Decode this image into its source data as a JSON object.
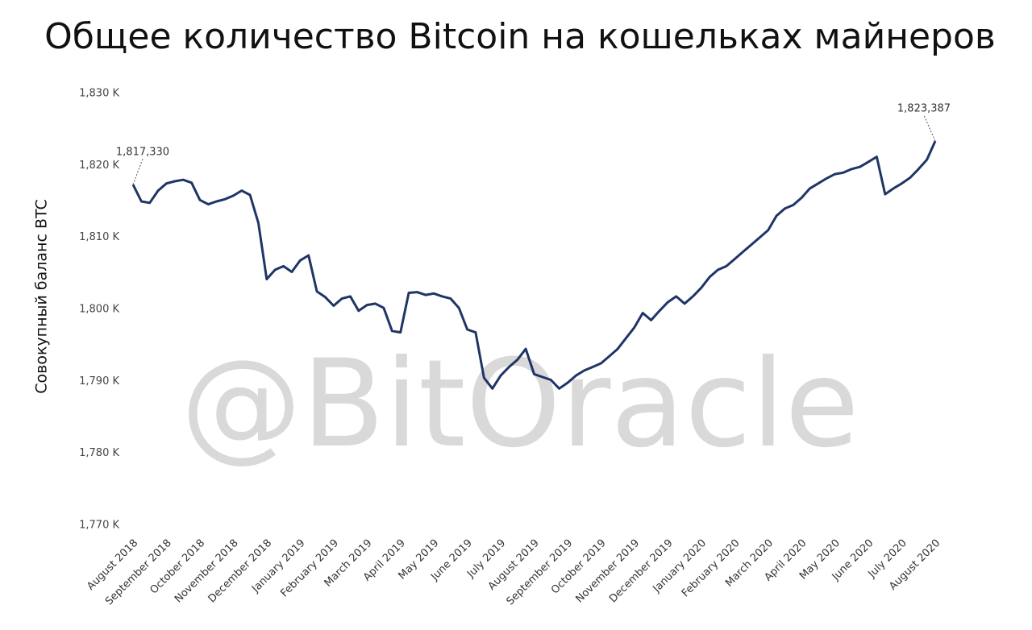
{
  "chart_data": {
    "type": "line",
    "title": "Общее количество Bitcoin на кошельках майнеров",
    "y_label": "Совокупный баланс BTC",
    "watermark": "@BitOracle",
    "categories": [
      "August 2018",
      null,
      null,
      null,
      "September 2018",
      null,
      null,
      null,
      "October 2018",
      null,
      null,
      null,
      "November 2018",
      null,
      null,
      null,
      "December 2018",
      null,
      null,
      null,
      "January 2019",
      null,
      null,
      null,
      "February 2019",
      null,
      null,
      null,
      "March 2019",
      null,
      null,
      null,
      "April 2019",
      null,
      null,
      null,
      "May 2019",
      null,
      null,
      null,
      "June 2019",
      null,
      null,
      null,
      "July 2019",
      null,
      null,
      null,
      "August 2019",
      null,
      null,
      null,
      "September 2019",
      null,
      null,
      null,
      "October 2019",
      null,
      null,
      null,
      "November 2019",
      null,
      null,
      null,
      "December 2019",
      null,
      null,
      null,
      "January 2020",
      null,
      null,
      null,
      "February 2020",
      null,
      null,
      null,
      "March 2020",
      null,
      null,
      null,
      "April 2020",
      null,
      null,
      null,
      "May 2020",
      null,
      null,
      null,
      "June 2020",
      null,
      null,
      null,
      "July 2020",
      null,
      null,
      null,
      "August 2020"
    ],
    "values": [
      1817330,
      1815000,
      1814800,
      1816500,
      1817500,
      1817800,
      1818000,
      1817600,
      1815200,
      1814600,
      1815000,
      1815300,
      1815800,
      1816500,
      1815900,
      1812000,
      1804200,
      1805500,
      1806000,
      1805200,
      1806800,
      1807500,
      1802500,
      1801700,
      1800500,
      1801500,
      1801800,
      1799800,
      1800600,
      1800800,
      1800200,
      1797000,
      1796800,
      1802300,
      1802400,
      1802000,
      1802200,
      1801800,
      1801500,
      1800200,
      1797200,
      1796800,
      1790500,
      1789000,
      1790800,
      1792000,
      1793000,
      1794500,
      1791000,
      1790600,
      1790200,
      1789000,
      1789800,
      1790800,
      1791500,
      1792000,
      1792500,
      1793500,
      1794500,
      1796000,
      1797500,
      1799500,
      1798500,
      1799800,
      1801000,
      1801800,
      1800800,
      1801800,
      1803000,
      1804500,
      1805500,
      1806000,
      1807000,
      1808000,
      1809000,
      1810000,
      1811000,
      1813000,
      1814000,
      1814500,
      1815500,
      1816800,
      1817500,
      1818200,
      1818800,
      1819000,
      1819500,
      1819800,
      1820500,
      1821200,
      1816000,
      1816800,
      1817500,
      1818300,
      1819500,
      1820800,
      1823387
    ],
    "value_labels": [
      "1,817,330",
      null,
      null,
      null,
      null,
      null,
      null,
      null,
      null,
      null,
      null,
      null,
      null,
      null,
      null,
      null,
      null,
      null,
      null,
      null,
      null,
      null,
      null,
      null,
      null,
      null,
      null,
      null,
      null,
      null,
      null,
      null,
      null,
      null,
      null,
      null,
      null,
      null,
      null,
      null,
      null,
      null,
      null,
      null,
      null,
      null,
      null,
      null,
      null,
      null,
      null,
      null,
      null,
      null,
      null,
      null,
      null,
      null,
      null,
      null,
      null,
      null,
      null,
      null,
      null,
      null,
      null,
      null,
      null,
      null,
      null,
      null,
      null,
      null,
      null,
      null,
      null,
      null,
      null,
      null,
      null,
      null,
      null,
      null,
      null,
      null,
      null,
      null,
      null,
      null,
      null,
      null,
      null,
      null,
      null,
      null,
      "1,823,387"
    ],
    "color": "#1f3566",
    "ylim": [
      1770000,
      1830000
    ],
    "yticks": [
      {
        "value": 1770000,
        "label": "1,770 K"
      },
      {
        "value": 1780000,
        "label": "1,780 K"
      },
      {
        "value": 1790000,
        "label": "1,790 K"
      },
      {
        "value": 1800000,
        "label": "1,800 K"
      },
      {
        "value": 1810000,
        "label": "1,810 K"
      },
      {
        "value": 1820000,
        "label": "1,820 K"
      },
      {
        "value": 1830000,
        "label": "1,830 K"
      }
    ],
    "grid": false
  }
}
